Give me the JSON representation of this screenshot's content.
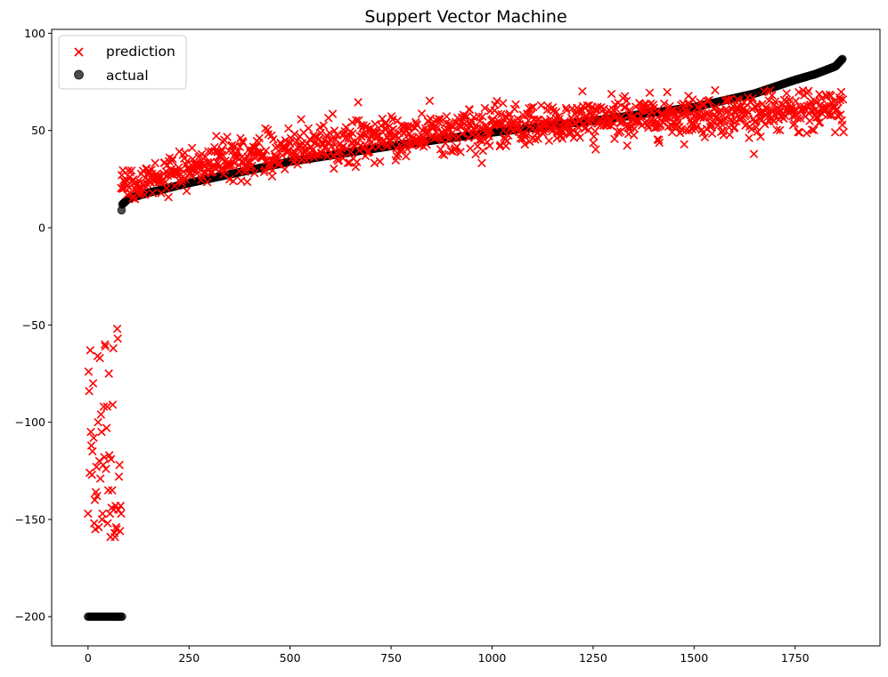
{
  "chart_data": {
    "type": "scatter",
    "title": "Suppert Vector Machine",
    "xlabel": "",
    "ylabel": "",
    "xlim": [
      -90,
      1960
    ],
    "ylim": [
      -215,
      102
    ],
    "x_ticks": [
      0,
      250,
      500,
      750,
      1000,
      1250,
      1500,
      1750
    ],
    "y_ticks": [
      100,
      50,
      0,
      -50,
      -100,
      -150,
      -200
    ],
    "grid": false,
    "legend_position": "upper left",
    "n_points": 1870,
    "series": [
      {
        "name": "prediction",
        "marker": "x",
        "color": "#ff0000",
        "outlier_x_range": [
          0,
          82
        ],
        "outlier_values": [
          -147,
          -74,
          -84,
          -126,
          -63,
          -105,
          -112,
          -127,
          -115,
          -80,
          -108,
          -152,
          -140,
          -155,
          -136,
          -123,
          -138,
          -66,
          -100,
          -154,
          -120,
          -67,
          -129,
          -96,
          -105,
          -150,
          -147,
          -122,
          -92,
          -118,
          -60,
          -61,
          -124,
          -103,
          -92,
          -152,
          -135,
          -75,
          -117,
          -147,
          -159,
          -119,
          -144,
          -135,
          -91,
          -62,
          -145,
          -157,
          -159,
          -143,
          -154,
          -155,
          -52,
          -57,
          -145,
          -128,
          -122,
          -156,
          -143,
          -147
        ],
        "upper_trend": [
          [
            82,
            22
          ],
          [
            250,
            31
          ],
          [
            500,
            40
          ],
          [
            750,
            47
          ],
          [
            1000,
            51
          ],
          [
            1250,
            55
          ],
          [
            1500,
            58
          ],
          [
            1870,
            60
          ]
        ],
        "spread": 13
      },
      {
        "name": "actual",
        "marker": "o",
        "color": "#000000",
        "opacity": 0.7,
        "sentinel_value": -200,
        "sentinel_x_range": [
          0,
          85
        ],
        "curve": [
          [
            83,
            9
          ],
          [
            85,
            12
          ],
          [
            100,
            15
          ],
          [
            150,
            18
          ],
          [
            250,
            23
          ],
          [
            500,
            34
          ],
          [
            750,
            42
          ],
          [
            1000,
            49
          ],
          [
            1250,
            55
          ],
          [
            1500,
            62
          ],
          [
            1650,
            69
          ],
          [
            1750,
            76
          ],
          [
            1800,
            79
          ],
          [
            1850,
            83
          ],
          [
            1868,
            87
          ]
        ]
      }
    ]
  }
}
